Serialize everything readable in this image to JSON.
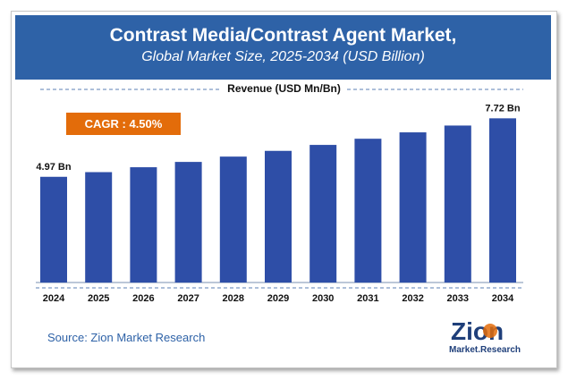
{
  "header": {
    "title": "Contrast Media/Contrast Agent Market,",
    "subtitle": "Global Market Size, 2025-2034 (USD Billion)"
  },
  "revenue_label": "Revenue (USD Mn/Bn)",
  "cagr_label": "CAGR : 4.50%",
  "source": "Source: Zion Market Research",
  "logo": {
    "word": "Zion",
    "sub": "Market.Research"
  },
  "colors": {
    "header": "#2e62a7",
    "bar": "#2e4ea7",
    "cagr": "#e36c0a"
  },
  "chart_data": {
    "type": "bar",
    "title": "Contrast Media/Contrast Agent Market, Global Market Size, 2025-2034 (USD Billion)",
    "xlabel": "",
    "ylabel": "Revenue (USD Mn/Bn)",
    "categories": [
      "2024",
      "2025",
      "2026",
      "2027",
      "2028",
      "2029",
      "2030",
      "2031",
      "2032",
      "2033",
      "2034"
    ],
    "values": [
      4.97,
      5.19,
      5.42,
      5.67,
      5.92,
      6.19,
      6.47,
      6.76,
      7.06,
      7.38,
      7.72
    ],
    "data_labels": {
      "0": "4.97 Bn",
      "10": "7.72 Bn"
    },
    "ylim": [
      0,
      9.5
    ],
    "grid": false,
    "legend": "none"
  }
}
